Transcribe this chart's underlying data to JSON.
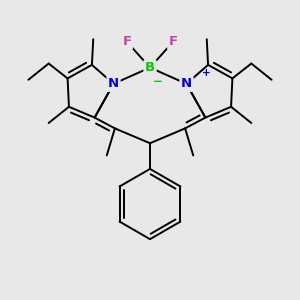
{
  "bg_color": "#e8e8e8",
  "bond_color": "#000000",
  "bond_lw": 1.4,
  "atom_colors": {
    "N": "#0000ee",
    "B": "#00cc00",
    "F": "#cc44aa",
    "plus": "#0000ee",
    "minus": "#00cc00"
  },
  "afs": 9.5,
  "sfs": 7.5,
  "xlim": [
    -5.5,
    5.5
  ],
  "ylim": [
    -5.0,
    4.5
  ],
  "Bx": 0.0,
  "By": 2.8,
  "NLx": -1.35,
  "NLy": 2.2,
  "NRx": 1.35,
  "NRy": 2.2,
  "LL1x": -2.15,
  "LL1y": 2.9,
  "LL2x": -3.05,
  "LL2y": 2.4,
  "LL3x": -3.0,
  "LL3y": 1.35,
  "LL4x": -2.05,
  "LL4y": 0.95,
  "RL1x": 2.15,
  "RL1y": 2.9,
  "RL2x": 3.05,
  "RL2y": 2.4,
  "RL3x": 3.0,
  "RL3y": 1.35,
  "RL4x": 2.05,
  "RL4y": 0.95,
  "CLx": -1.3,
  "CLy": 0.55,
  "CRx": 1.3,
  "CRy": 0.55,
  "CMx": 0.0,
  "CMy": 0.0,
  "BFLx": -0.85,
  "BFLy": 3.75,
  "BFRx": 0.85,
  "BFRy": 3.75,
  "ELC1x": -3.75,
  "ELC1y": 2.95,
  "ELC2x": -4.5,
  "ELC2y": 2.35,
  "ERC1x": 3.75,
  "ERC1y": 2.95,
  "ERC2x": 4.5,
  "ERC2y": 2.35,
  "MLtx": -2.1,
  "MLty": 3.85,
  "MLbx": -3.75,
  "MLby": 0.75,
  "MLcx": -1.6,
  "MLcy": -0.45,
  "MRtx": 2.1,
  "MRty": 3.85,
  "MRbx": 3.75,
  "MRby": 0.75,
  "MRcx": 1.6,
  "MRcy": -0.45,
  "Phcx": 0.0,
  "Phcy": -2.25,
  "Phr": 1.3
}
